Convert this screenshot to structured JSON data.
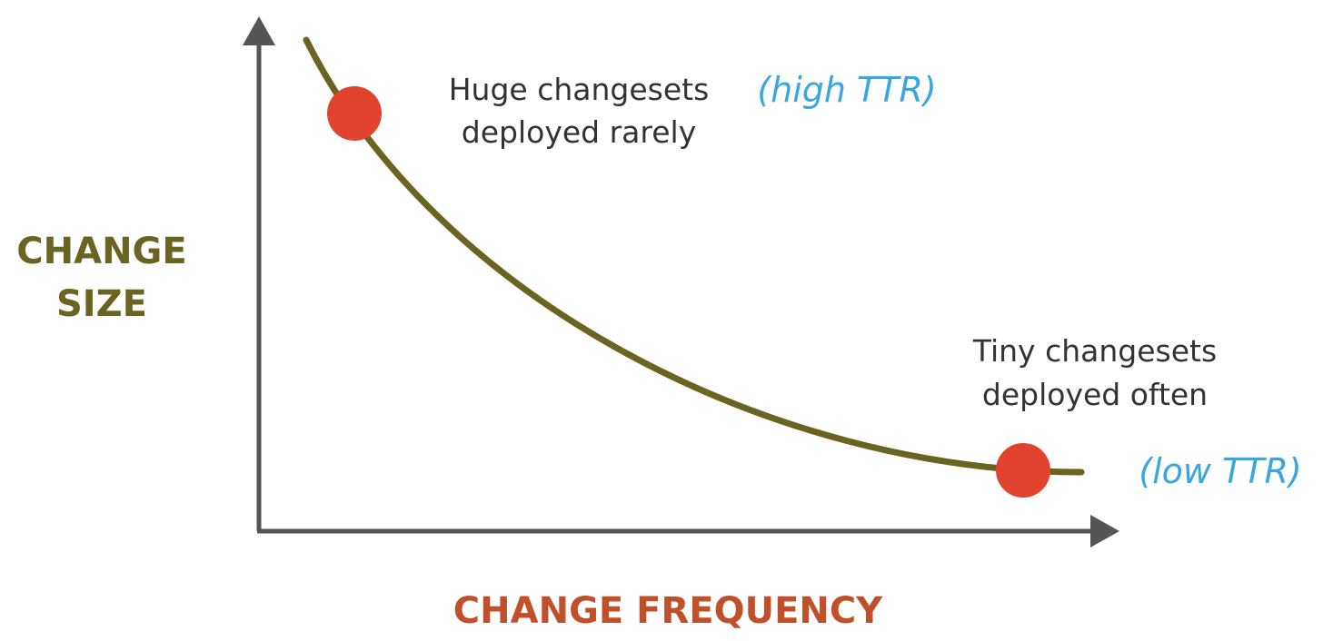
{
  "colors": {
    "axis": "#555555",
    "curve": "#6b6420",
    "point": "#e2432e",
    "y_label": "#6b6420",
    "x_label": "#c0502a",
    "annotation": "#333333",
    "ttr": "#3aa6e0"
  },
  "axes": {
    "y_label_line1": "CHANGE",
    "y_label_line2": "SIZE",
    "x_label": "CHANGE FREQUENCY"
  },
  "points": {
    "high": {
      "label_line1": "Huge changesets",
      "label_line2": "deployed rarely",
      "ttr": "(high TTR)"
    },
    "low": {
      "label_line1": "Tiny changesets",
      "label_line2": "deployed often",
      "ttr": "(low TTR)"
    }
  }
}
